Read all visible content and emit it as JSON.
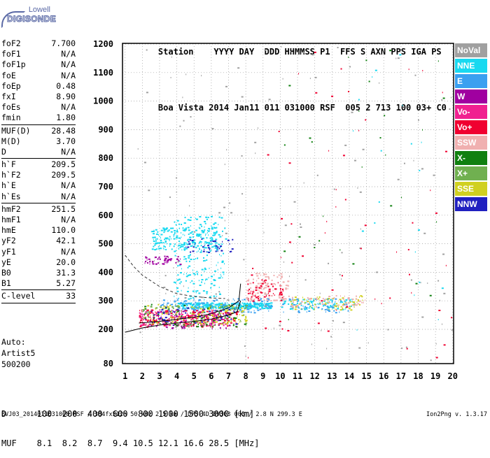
{
  "logo": {
    "line1": "Lowell",
    "line2": "DIGISONDE"
  },
  "header": {
    "row1": [
      "Station",
      "YYYY DAY",
      "DDD HHMMSS",
      "P1",
      "FFS",
      "S",
      "AXN",
      "PPS",
      "IGA",
      "PS"
    ],
    "row2": [
      "Boa Vista",
      "2014 Jan11",
      "011 031000",
      "RSF",
      "005",
      "2",
      "713",
      "100",
      "03+",
      "C0"
    ]
  },
  "params": [
    {
      "name": "foF2",
      "value": "7.700"
    },
    {
      "name": "foF1",
      "value": "N/A"
    },
    {
      "name": "foF1p",
      "value": "N/A"
    },
    {
      "name": "foE",
      "value": "N/A"
    },
    {
      "name": "foEp",
      "value": "0.48"
    },
    {
      "name": "fxI",
      "value": "8.90"
    },
    {
      "name": "foEs",
      "value": "N/A"
    },
    {
      "name": "fmin",
      "value": "1.80",
      "sep": true
    },
    {
      "name": "MUF(D)",
      "value": "28.48"
    },
    {
      "name": "M(D)",
      "value": "3.70"
    },
    {
      "name": "D",
      "value": "N/A",
      "sep": true
    },
    {
      "name": "h`F",
      "value": "209.5"
    },
    {
      "name": "h`F2",
      "value": "209.5"
    },
    {
      "name": "h`E",
      "value": "N/A"
    },
    {
      "name": "h`Es",
      "value": "N/A",
      "sep": true
    },
    {
      "name": "hmF2",
      "value": "251.5"
    },
    {
      "name": "hmF1",
      "value": "N/A"
    },
    {
      "name": "hmE",
      "value": "110.0"
    },
    {
      "name": "yF2",
      "value": "42.1"
    },
    {
      "name": "yF1",
      "value": "N/A"
    },
    {
      "name": "yE",
      "value": "20.0"
    },
    {
      "name": "B0",
      "value": "31.3"
    },
    {
      "name": "B1",
      "value": "5.27",
      "sep": true
    },
    {
      "name": "C-level",
      "value": "33",
      "sep": true
    }
  ],
  "autoscale": {
    "line1": "Auto:",
    "line2": "Artist5",
    "line3": "500200"
  },
  "legend": [
    {
      "name": "NoVal",
      "color": "#a0a0a0"
    },
    {
      "name": "NNE",
      "color": "#19d9f0"
    },
    {
      "name": "E",
      "color": "#3aa0f0"
    },
    {
      "name": "W",
      "color": "#a000a0"
    },
    {
      "name": "Vo-",
      "color": "#f02090"
    },
    {
      "name": "Vo+",
      "color": "#f00030"
    },
    {
      "name": "SSW",
      "color": "#f0b0b0"
    },
    {
      "name": "X-",
      "color": "#108010"
    },
    {
      "name": "X+",
      "color": "#70b050"
    },
    {
      "name": "SSE",
      "color": "#d0d020"
    },
    {
      "name": "NNW",
      "color": "#2020c0"
    }
  ],
  "muf_table": {
    "row1_label": "D",
    "row1_values": [
      "100",
      "200",
      "400",
      "600",
      "800",
      "1000",
      "1500",
      "3000"
    ],
    "row1_unit": "[km]",
    "row2_label": "MUF",
    "row2_values": [
      "8.1",
      "8.2",
      "8.7",
      "9.4",
      "10.5",
      "12.1",
      "16.6",
      "28.5"
    ],
    "row2_unit": "[MHz]"
  },
  "footer": {
    "left": "BVJ03_2014011031000.RSF / 384fx512h 50 kHz 2.5 km / DPS-4D BVJ03 003 / 2.8 N 299.3 E",
    "right": "Ion2Png v. 1.3.17"
  },
  "chart_data": {
    "type": "scatter",
    "title": "",
    "xlabel": "",
    "ylabel": "",
    "xlim": [
      1,
      20
    ],
    "ylim": [
      80,
      1200
    ],
    "x_ticks": [
      1,
      2,
      3,
      4,
      5,
      6,
      7,
      8,
      9,
      10,
      11,
      12,
      13,
      14,
      15,
      16,
      17,
      18,
      19,
      20
    ],
    "y_ticks": [
      80,
      200,
      300,
      400,
      500,
      600,
      700,
      800,
      900,
      1000,
      1100,
      1200
    ],
    "grid": "dotted",
    "legend_position": "right",
    "clusters": [
      {
        "series": "NNE",
        "x": [
          2.5,
          6.3
        ],
        "y": [
          480,
          560
        ],
        "count": 220
      },
      {
        "series": "NNE",
        "x": [
          3.8,
          6.8
        ],
        "y": [
          300,
          600
        ],
        "count": 200
      },
      {
        "series": "W",
        "x": [
          2.0,
          4.2
        ],
        "y": [
          430,
          460
        ],
        "count": 50
      },
      {
        "series": "NNW",
        "x": [
          4.5,
          7.2
        ],
        "y": [
          470,
          520
        ],
        "count": 40
      },
      {
        "series": "NNE",
        "x": [
          4.0,
          9.5
        ],
        "y": [
          275,
          295
        ],
        "count": 350
      },
      {
        "series": "E",
        "x": [
          3.0,
          9.5
        ],
        "y": [
          260,
          310
        ],
        "count": 160
      },
      {
        "series": "Vo+",
        "x": [
          1.8,
          7.5
        ],
        "y": [
          210,
          270
        ],
        "count": 220
      },
      {
        "series": "Vo-",
        "x": [
          1.8,
          7.0
        ],
        "y": [
          215,
          265
        ],
        "count": 150
      },
      {
        "series": "W",
        "x": [
          2.0,
          7.0
        ],
        "y": [
          205,
          270
        ],
        "count": 80
      },
      {
        "series": "SSE",
        "x": [
          2.0,
          8.0
        ],
        "y": [
          220,
          290
        ],
        "count": 130
      },
      {
        "series": "X-",
        "x": [
          2.0,
          8.0
        ],
        "y": [
          210,
          290
        ],
        "count": 70
      },
      {
        "series": "X+",
        "x": [
          2.0,
          8.0
        ],
        "y": [
          215,
          290
        ],
        "count": 60
      },
      {
        "series": "NNW",
        "x": [
          2.5,
          7.5
        ],
        "y": [
          215,
          280
        ],
        "count": 50
      },
      {
        "series": "SSW",
        "x": [
          8.0,
          10.5
        ],
        "y": [
          300,
          400
        ],
        "count": 120
      },
      {
        "series": "Vo+",
        "x": [
          8.0,
          10.5
        ],
        "y": [
          300,
          380
        ],
        "count": 60
      },
      {
        "series": "NNE",
        "x": [
          10.0,
          14.3
        ],
        "y": [
          270,
          310
        ],
        "count": 100
      },
      {
        "series": "SSE",
        "x": [
          10.5,
          14.8
        ],
        "y": [
          270,
          320
        ],
        "count": 80
      },
      {
        "series": "E",
        "x": [
          10.0,
          14.0
        ],
        "y": [
          260,
          310
        ],
        "count": 60
      },
      {
        "series": "SSW",
        "x": [
          10.0,
          15.0
        ],
        "y": [
          280,
          320
        ],
        "count": 60
      },
      {
        "series": "NoVal",
        "x": [
          1.5,
          20
        ],
        "y": [
          90,
          1200
        ],
        "count": 140
      },
      {
        "series": "Vo+",
        "x": [
          8.0,
          20
        ],
        "y": [
          90,
          1200
        ],
        "count": 60
      },
      {
        "series": "X-",
        "x": [
          10.0,
          20
        ],
        "y": [
          200,
          1200
        ],
        "count": 30
      },
      {
        "series": "NNE",
        "x": [
          14.0,
          20
        ],
        "y": [
          200,
          1200
        ],
        "count": 20
      }
    ],
    "traces": [
      {
        "name": "profile",
        "style": "solid",
        "x": [
          1.0,
          2.0,
          3.0,
          4.0,
          5.0,
          6.0,
          7.0,
          7.5,
          7.7
        ],
        "y": [
          190,
          205,
          215,
          222,
          228,
          236,
          250,
          262,
          300
        ]
      },
      {
        "name": "o-trace",
        "style": "solid",
        "x": [
          1.8,
          3.0,
          4.0,
          5.0,
          6.0,
          7.0,
          7.6,
          7.7
        ],
        "y": [
          222,
          228,
          235,
          243,
          255,
          275,
          300,
          360
        ]
      },
      {
        "name": "model",
        "style": "dashed",
        "x": [
          1.0,
          1.5,
          2.0,
          3.0,
          4.0,
          5.0,
          6.0,
          6.8
        ],
        "y": [
          460,
          420,
          390,
          350,
          325,
          315,
          310,
          308
        ]
      }
    ]
  }
}
